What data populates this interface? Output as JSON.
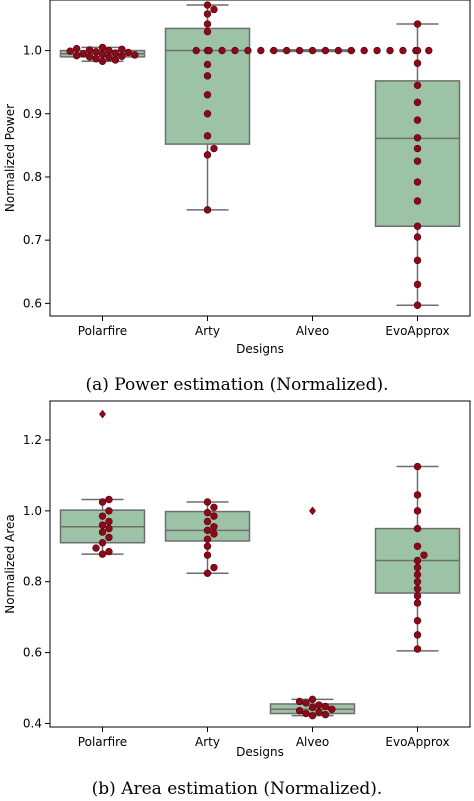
{
  "colors": {
    "box_fill": "#9dc3a6",
    "box_edge": "#6e6e6e",
    "point": "#8b0a1a",
    "point_edge": "#5a0010"
  },
  "chart_data": [
    {
      "type": "box",
      "caption": "(a) Power estimation (Normalized).",
      "xlabel": "Designs",
      "ylabel": "Normalized Power",
      "ylim": [
        0.58,
        1.08
      ],
      "yticks": [
        0.6,
        0.7,
        0.8,
        0.9,
        1.0
      ],
      "categories": [
        "Polarfire",
        "Arty",
        "Alveo",
        "EvoApprox"
      ],
      "boxes": [
        {
          "q1": 0.99,
          "median": 0.995,
          "q3": 1.0,
          "whisker_low": 0.983,
          "whisker_high": 1.005,
          "outliers": []
        },
        {
          "q1": 0.852,
          "median": 1.0,
          "q3": 1.035,
          "whisker_low": 0.748,
          "whisker_high": 1.072,
          "outliers": []
        },
        {
          "q1": 0.999,
          "median": 1.0,
          "q3": 1.001,
          "whisker_low": 0.999,
          "whisker_high": 1.001,
          "outliers": []
        },
        {
          "q1": 0.722,
          "median": 0.861,
          "q3": 0.952,
          "whisker_low": 0.597,
          "whisker_high": 1.042,
          "outliers": []
        }
      ],
      "points": [
        [
          0.983,
          0.985,
          0.987,
          0.989,
          0.99,
          0.991,
          0.992,
          0.993,
          0.994,
          0.995,
          0.996,
          0.997,
          0.998,
          0.999,
          1.0,
          1.001,
          1.002,
          1.003,
          1.005
        ],
        [
          1.072,
          1.065,
          1.058,
          1.042,
          1.03,
          1.0,
          0.978,
          0.96,
          0.93,
          0.9,
          0.865,
          0.845,
          0.835,
          0.748
        ],
        [
          1.0,
          1.0,
          1.0,
          1.0,
          1.0,
          1.0,
          1.0,
          1.0,
          1.0,
          1.0,
          1.0,
          1.0,
          1.0,
          1.0,
          1.0,
          1.0,
          1.0,
          1.0,
          1.0
        ],
        [
          1.042,
          1.0,
          0.98,
          0.945,
          0.918,
          0.89,
          0.862,
          0.845,
          0.825,
          0.792,
          0.762,
          0.722,
          0.705,
          0.668,
          0.63,
          0.597
        ]
      ]
    },
    {
      "type": "box",
      "caption": "(b) Area estimation (Normalized).",
      "xlabel": "Designs",
      "ylabel": "Normalized Area",
      "ylim": [
        0.39,
        1.31
      ],
      "yticks": [
        0.4,
        0.6,
        0.8,
        1.0,
        1.2
      ],
      "categories": [
        "Polarfire",
        "Arty",
        "Alveo",
        "EvoApprox"
      ],
      "boxes": [
        {
          "q1": 0.91,
          "median": 0.955,
          "q3": 1.002,
          "whisker_low": 0.878,
          "whisker_high": 1.032,
          "outliers": [
            1.273
          ]
        },
        {
          "q1": 0.915,
          "median": 0.945,
          "q3": 0.998,
          "whisker_low": 0.824,
          "whisker_high": 1.025,
          "outliers": []
        },
        {
          "q1": 0.428,
          "median": 0.44,
          "q3": 0.455,
          "whisker_low": 0.422,
          "whisker_high": 0.468,
          "outliers": [
            1.0
          ]
        },
        {
          "q1": 0.768,
          "median": 0.86,
          "q3": 0.95,
          "whisker_low": 0.605,
          "whisker_high": 1.125,
          "outliers": []
        }
      ],
      "points": [
        [
          1.032,
          1.025,
          1.0,
          0.985,
          0.97,
          0.96,
          0.95,
          0.94,
          0.925,
          0.91,
          0.895,
          0.885,
          0.878
        ],
        [
          1.025,
          1.01,
          0.995,
          0.985,
          0.97,
          0.955,
          0.945,
          0.935,
          0.92,
          0.9,
          0.875,
          0.84,
          0.824
        ],
        [
          0.468,
          0.462,
          0.458,
          0.452,
          0.448,
          0.445,
          0.44,
          0.436,
          0.432,
          0.428,
          0.425,
          0.422
        ],
        [
          1.125,
          1.045,
          1.0,
          0.95,
          0.9,
          0.875,
          0.86,
          0.84,
          0.82,
          0.8,
          0.78,
          0.76,
          0.74,
          0.69,
          0.65,
          0.61
        ]
      ]
    }
  ]
}
